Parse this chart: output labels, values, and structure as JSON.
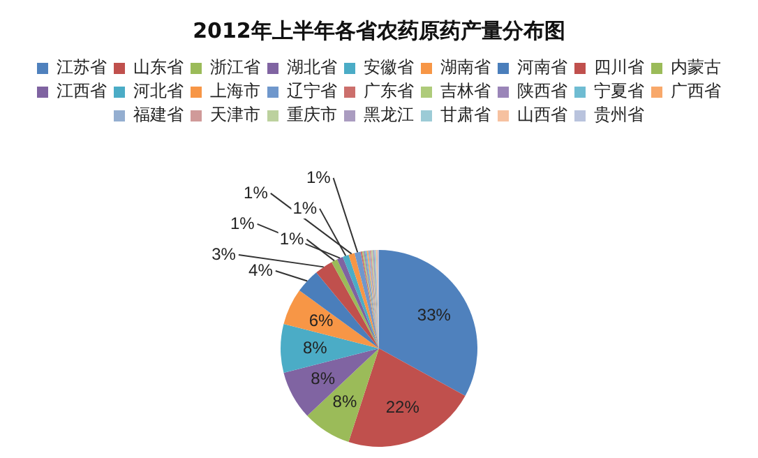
{
  "chart_data": {
    "type": "pie",
    "title": "2012年上半年各省农药原药产量分布图",
    "legend": "top",
    "categories": [
      "江苏省",
      "山东省",
      "浙江省",
      "湖北省",
      "安徽省",
      "湖南省",
      "河南省",
      "四川省",
      "内蒙古",
      "江西省",
      "河北省",
      "上海市",
      "辽宁省",
      "广东省",
      "吉林省",
      "陕西省",
      "宁夏省",
      "广西省",
      "福建省",
      "天津市",
      "重庆市",
      "黑龙江",
      "甘肃省",
      "山西省",
      "贵州省"
    ],
    "values": [
      33,
      22,
      8,
      8,
      8,
      6,
      4,
      3,
      1,
      1,
      1,
      1,
      1,
      0.25,
      0.25,
      0.25,
      0.25,
      0.25,
      0.25,
      0.25,
      0.25,
      0.25,
      0.25,
      0.25,
      0.25
    ],
    "value_labels": [
      "33%",
      "22%",
      "8%",
      "8%",
      "8%",
      "6%",
      "4%",
      "3%",
      "1%",
      "1%",
      "1%",
      "1%",
      "1%",
      null,
      null,
      null,
      null,
      null,
      null,
      null,
      null,
      null,
      null,
      null,
      null
    ],
    "colors": [
      "#4f81bd",
      "#c0504d",
      "#9bbb59",
      "#8064a2",
      "#4bacc6",
      "#f79646",
      "#4a7ebb",
      "#c0504d",
      "#9bbb59",
      "#7f63a1",
      "#4bacc6",
      "#f79646",
      "#6f97cc",
      "#cc6f6c",
      "#aecb7a",
      "#9a85b8",
      "#6fbcd2",
      "#f8a86a",
      "#94aed0",
      "#d09a99",
      "#bcd19e",
      "#aa9cc0",
      "#9ccbd6",
      "#f6c1a0",
      "#b9c3dd"
    ]
  }
}
